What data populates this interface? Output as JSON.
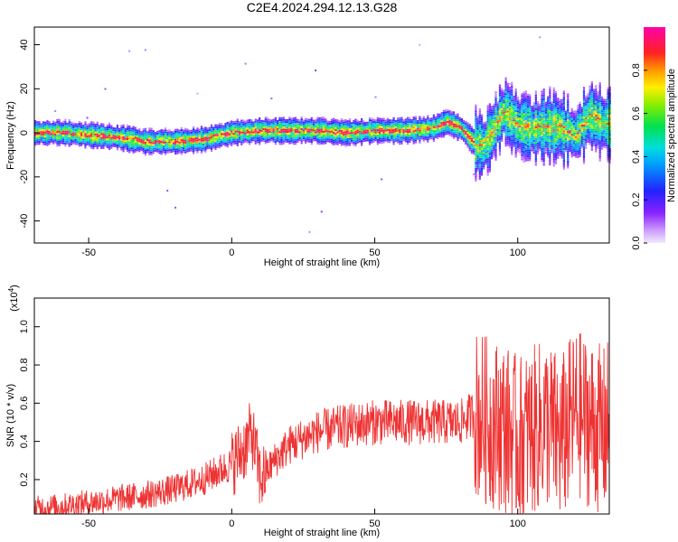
{
  "title": "C2E4.2024.294.12.13.G28",
  "colors": {
    "snr_line": "#ee3333",
    "axis": "#000000",
    "background": "#ffffff"
  },
  "chart_data": [
    {
      "type": "heatmap",
      "xlabel": "Height of straight line (km)",
      "ylabel": "Frequency (Hz)",
      "xlim": [
        -69,
        132
      ],
      "ylim": [
        -50,
        48
      ],
      "xticks": [
        -50,
        0,
        50,
        100
      ],
      "yticks": [
        -40,
        -20,
        0,
        20,
        40
      ],
      "colorbar": {
        "label": "Normalized spectral amplitude",
        "range": [
          0,
          1
        ],
        "ticks": [
          0.0,
          0.2,
          0.4,
          0.6,
          0.8
        ],
        "colormap": "rainbow (purple → blue → cyan → green → yellow → red → magenta)"
      },
      "ridge_frequency": {
        "x": [
          -69,
          -60,
          -50,
          -40,
          -30,
          -20,
          -10,
          0,
          10,
          20,
          30,
          40,
          50,
          60,
          70,
          75,
          80,
          85,
          88,
          92,
          95,
          100,
          105,
          110,
          115,
          120,
          125,
          130,
          132
        ],
        "y": [
          0,
          0,
          -1,
          -2,
          -4,
          -4,
          -3,
          0,
          1,
          1,
          1,
          0,
          1,
          1,
          2,
          5,
          2,
          -5,
          -6,
          3,
          10,
          3,
          2,
          3,
          2,
          -1,
          8,
          4,
          4
        ]
      }
    },
    {
      "type": "line",
      "xlabel": "Height of straight line (km)",
      "ylabel": "SNR (10 * v/v)",
      "y_multiplier_label": "(x10",
      "y_multiplier_exp": "4",
      "xlim": [
        -69,
        132
      ],
      "ylim": [
        0.02,
        1.15
      ],
      "xticks": [
        -50,
        0,
        50,
        100
      ],
      "yticks": [
        0.2,
        0.4,
        0.6,
        0.8,
        1.0
      ],
      "series_envelope": {
        "x": [
          -69,
          -60,
          -50,
          -40,
          -30,
          -20,
          -10,
          0,
          5,
          7,
          10,
          15,
          20,
          30,
          40,
          50,
          60,
          70,
          80,
          85,
          90,
          95,
          100,
          105,
          110,
          115,
          120,
          125,
          130,
          132
        ],
        "y": [
          0.05,
          0.06,
          0.08,
          0.1,
          0.12,
          0.15,
          0.2,
          0.28,
          0.38,
          0.45,
          0.2,
          0.3,
          0.38,
          0.45,
          0.48,
          0.5,
          0.5,
          0.5,
          0.5,
          0.55,
          0.5,
          0.48,
          0.4,
          0.45,
          0.5,
          0.4,
          0.55,
          0.5,
          0.45,
          0.5
        ]
      }
    }
  ]
}
